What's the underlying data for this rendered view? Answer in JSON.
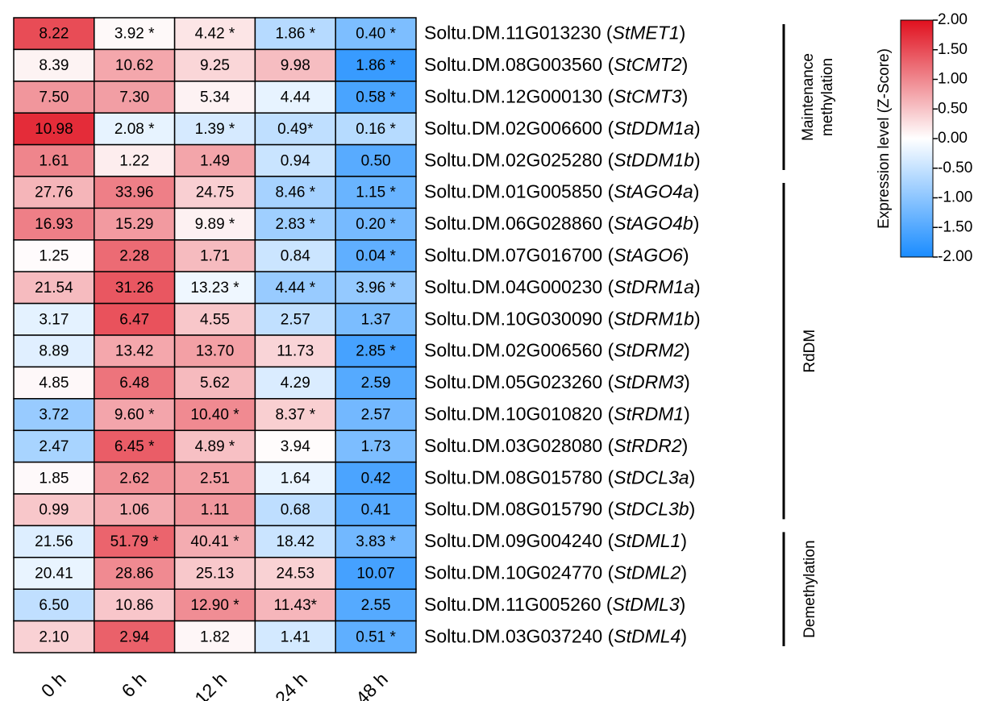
{
  "chart_data": {
    "type": "heatmap",
    "columns": [
      "0 h",
      "6 h",
      "12 h",
      "24 h",
      "48 h"
    ],
    "rows": [
      [
        "Soltu.DM.11G013230 (",
        "StMET1",
        ")"
      ],
      [
        "Soltu.DM.08G003560 (",
        "StCMT2",
        ")"
      ],
      [
        "Soltu.DM.12G000130 (",
        "StCMT3",
        ")"
      ],
      [
        "Soltu.DM.02G006600 (",
        "StDDM1a",
        ")"
      ],
      [
        "Soltu.DM.02G025280 (",
        "StDDM1b",
        ")"
      ],
      [
        "Soltu.DM.01G005850 (",
        "StAGO4a",
        ")"
      ],
      [
        "Soltu.DM.06G028860 (",
        "StAGO4b",
        ")"
      ],
      [
        "Soltu.DM.07G016700 (",
        "StAGO6",
        ")"
      ],
      [
        "Soltu.DM.04G000230 (",
        "StDRM1a",
        ")"
      ],
      [
        "Soltu.DM.10G030090 (",
        "StDRM1b",
        ")"
      ],
      [
        "Soltu.DM.02G006560 (",
        "StDRM2",
        ")"
      ],
      [
        "Soltu.DM.05G023260 (",
        "StDRM3",
        ")"
      ],
      [
        "Soltu.DM.10G010820 (",
        "StRDM1",
        ")"
      ],
      [
        "Soltu.DM.03G028080 (",
        "StRDR2",
        ")"
      ],
      [
        "Soltu.DM.08G015780 (",
        "StDCL3a",
        ")"
      ],
      [
        "Soltu.DM.08G015790 (",
        "StDCL3b",
        ")"
      ],
      [
        "Soltu.DM.09G004240 (",
        "StDML1",
        ")"
      ],
      [
        "Soltu.DM.10G024770 (",
        "StDML2",
        ")"
      ],
      [
        "Soltu.DM.11G005260 (",
        "StDML3",
        ")"
      ],
      [
        "Soltu.DM.03G037240 (",
        "StDML4",
        ")"
      ]
    ],
    "values": [
      [
        8.22,
        3.92,
        4.42,
        1.86,
        0.4
      ],
      [
        8.39,
        10.62,
        9.25,
        9.98,
        1.86
      ],
      [
        7.5,
        7.3,
        5.34,
        4.44,
        0.58
      ],
      [
        10.98,
        2.08,
        1.39,
        0.49,
        0.16
      ],
      [
        1.61,
        1.22,
        1.49,
        0.94,
        0.5
      ],
      [
        27.76,
        33.96,
        24.75,
        8.46,
        1.15
      ],
      [
        16.93,
        15.29,
        9.89,
        2.83,
        0.2
      ],
      [
        1.25,
        2.28,
        1.71,
        0.84,
        0.04
      ],
      [
        21.54,
        31.26,
        13.23,
        4.44,
        3.96
      ],
      [
        3.17,
        6.47,
        4.55,
        2.57,
        1.37
      ],
      [
        8.89,
        13.42,
        13.7,
        11.73,
        2.85
      ],
      [
        4.85,
        6.48,
        5.62,
        4.29,
        2.59
      ],
      [
        3.72,
        9.6,
        10.4,
        8.37,
        2.57
      ],
      [
        2.47,
        6.45,
        4.89,
        3.94,
        1.73
      ],
      [
        1.85,
        2.62,
        2.51,
        1.64,
        0.42
      ],
      [
        0.99,
        1.06,
        1.11,
        0.68,
        0.41
      ],
      [
        21.56,
        51.79,
        40.41,
        18.42,
        3.83
      ],
      [
        20.41,
        28.86,
        25.13,
        24.53,
        10.07
      ],
      [
        6.5,
        10.86,
        12.9,
        11.43,
        2.55
      ],
      [
        2.1,
        2.94,
        1.82,
        1.41,
        0.51
      ]
    ],
    "value_labels": [
      [
        "8.22",
        "3.92 *",
        "4.42 *",
        "1.86 *",
        "0.40 *"
      ],
      [
        "8.39",
        "10.62",
        "9.25",
        "9.98",
        "1.86 *"
      ],
      [
        "7.50",
        "7.30",
        "5.34",
        "4.44",
        "0.58 *"
      ],
      [
        "10.98",
        "2.08 *",
        "1.39 *",
        "0.49*",
        "0.16 *"
      ],
      [
        "1.61",
        "1.22",
        "1.49",
        "0.94",
        "0.50"
      ],
      [
        "27.76",
        "33.96",
        "24.75",
        "8.46 *",
        "1.15 *"
      ],
      [
        "16.93",
        "15.29",
        "9.89 *",
        "2.83 *",
        "0.20 *"
      ],
      [
        "1.25",
        "2.28",
        "1.71",
        "0.84",
        "0.04 *"
      ],
      [
        "21.54",
        "31.26",
        "13.23 *",
        "4.44 *",
        "3.96 *"
      ],
      [
        "3.17",
        "6.47",
        "4.55",
        "2.57",
        "1.37"
      ],
      [
        "8.89",
        "13.42",
        "13.70",
        "11.73",
        "2.85 *"
      ],
      [
        "4.85",
        "6.48",
        "5.62",
        "4.29",
        "2.59"
      ],
      [
        "3.72",
        "9.60 *",
        "10.40 *",
        "8.37 *",
        "2.57"
      ],
      [
        "2.47",
        "6.45 *",
        "4.89 *",
        "3.94",
        "1.73"
      ],
      [
        "1.85",
        "2.62",
        "2.51",
        "1.64",
        "0.42"
      ],
      [
        "0.99",
        "1.06",
        "1.11",
        "0.68",
        "0.41"
      ],
      [
        "21.56",
        "51.79 *",
        "40.41 *",
        "18.42",
        "3.83 *"
      ],
      [
        "20.41",
        "28.86",
        "25.13",
        "24.53",
        "10.07"
      ],
      [
        "6.50",
        "10.86",
        "12.90 *",
        "11.43*",
        "2.55"
      ],
      [
        "2.10",
        "2.94",
        "1.82",
        "1.41",
        "0.51 *"
      ]
    ],
    "groups": [
      {
        "label": [
          "Maintenance",
          "methylation"
        ],
        "n_rows": 5
      },
      {
        "label": [
          "RdDM"
        ],
        "n_rows": 11
      },
      {
        "label": [
          "Demethylation"
        ],
        "n_rows": 4
      }
    ],
    "colorbar": {
      "title": "Expression level (Z-Score)",
      "lim": [
        -2,
        2
      ],
      "colormap": [
        "#1a8cff",
        "#ffffff",
        "#e0101e"
      ],
      "ticks": [
        {
          "value": 2,
          "label": "2.00"
        },
        {
          "value": 1.5,
          "label": "1.50"
        },
        {
          "value": 1,
          "label": "1.00"
        },
        {
          "value": 0.5,
          "label": "0.50"
        },
        {
          "value": 0,
          "label": "0.00"
        },
        {
          "value": -0.5,
          "label": "-0.50"
        },
        {
          "value": -1,
          "label": "-1.00"
        },
        {
          "value": -1.5,
          "label": "-1.50"
        },
        {
          "value": -2,
          "label": "-2.00"
        }
      ]
    }
  }
}
